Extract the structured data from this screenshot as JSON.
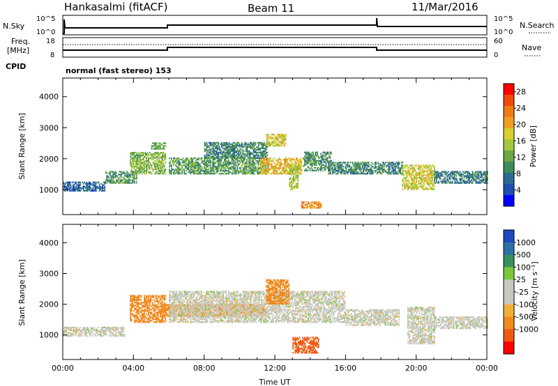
{
  "header": {
    "station": "Hankasalmi (fitACF)",
    "beam": "Beam 11",
    "date": "11/Mar/2016"
  },
  "top_panels": {
    "nsky_label": "N.Sky",
    "nsky_ticks": [
      "10^5",
      "10^0"
    ],
    "nsearch_label": "N.Search",
    "nsearch_ticks": [
      "10^5",
      "10^0"
    ],
    "freq_label": [
      "Freq.",
      "[MHz]"
    ],
    "freq_ticks": [
      "18",
      "8"
    ],
    "nave_label": "Nave",
    "nave_ticks": [
      "60",
      "0"
    ],
    "cpid_label": "CPID",
    "cpid_text": "normal (fast stereo) 153"
  },
  "colors": {
    "power": [
      "#0000ff",
      "#1f4fb0",
      "#2e6a96",
      "#3e8c5a",
      "#6ca848",
      "#a3c83c",
      "#d8d030",
      "#f0a020",
      "#f07c14",
      "#f04a0a",
      "#ff0000"
    ],
    "velocity": [
      "#1c48c0",
      "#2e70a8",
      "#3a9060",
      "#7ac83c",
      "#c8c8c0",
      "#c8c8c0",
      "#f0b038",
      "#f08a1e",
      "#f05a10",
      "#ff0000"
    ]
  },
  "chart_data": [
    {
      "type": "heatmap",
      "name": "power-panel",
      "ylabel": "Slant Range [km]",
      "xlabel": "",
      "xlim": [
        0,
        24
      ],
      "ylim": [
        200,
        4600
      ],
      "yticks": [
        "1000",
        "2000",
        "3000",
        "4000"
      ],
      "colorbar_label": "Power [dB]",
      "colorbar_ticks": [
        "4",
        "8",
        "12",
        "16",
        "20",
        "24",
        "28"
      ],
      "colorbar_range": [
        0,
        30
      ],
      "features": [
        {
          "time": [
            0.0,
            2.4
          ],
          "range": [
            950,
            1250
          ],
          "value": 6
        },
        {
          "time": [
            2.4,
            4.2
          ],
          "range": [
            1200,
            1600
          ],
          "value": 10
        },
        {
          "time": [
            3.8,
            5.8
          ],
          "range": [
            1500,
            2200
          ],
          "value": 13
        },
        {
          "time": [
            5.0,
            5.8
          ],
          "range": [
            2300,
            2500
          ],
          "value": 11
        },
        {
          "time": [
            6.0,
            11.6
          ],
          "range": [
            1500,
            2000
          ],
          "value": 11
        },
        {
          "time": [
            8.0,
            11.6
          ],
          "range": [
            2000,
            2500
          ],
          "value": 9
        },
        {
          "time": [
            11.5,
            12.6
          ],
          "range": [
            2400,
            2800
          ],
          "value": 17
        },
        {
          "time": [
            11.2,
            13.5
          ],
          "range": [
            1500,
            2000
          ],
          "value": 19
        },
        {
          "time": [
            12.8,
            13.3
          ],
          "range": [
            1000,
            1800
          ],
          "value": 15
        },
        {
          "time": [
            13.6,
            15.2
          ],
          "range": [
            1600,
            2200
          ],
          "value": 10
        },
        {
          "time": [
            13.5,
            14.6
          ],
          "range": [
            400,
            600
          ],
          "value": 22
        },
        {
          "time": [
            15.0,
            19.2
          ],
          "range": [
            1500,
            1900
          ],
          "value": 9
        },
        {
          "time": [
            19.2,
            21.0
          ],
          "range": [
            1000,
            1800
          ],
          "value": 17
        },
        {
          "time": [
            21.0,
            24.0
          ],
          "range": [
            1200,
            1600
          ],
          "value": 8
        }
      ]
    },
    {
      "type": "heatmap",
      "name": "velocity-panel",
      "ylabel": "Slant Range [km]",
      "xlabel": "Time UT",
      "xlim": [
        0,
        24
      ],
      "ylim": [
        200,
        4600
      ],
      "xticks": [
        "00:00",
        "04:00",
        "08:00",
        "12:00",
        "16:00",
        "20:00",
        "00:00"
      ],
      "yticks": [
        "1000",
        "2000",
        "3000",
        "4000"
      ],
      "colorbar_label": "Velocity [m s⁻¹]",
      "colorbar_ticks": [
        "1000",
        "500",
        "100",
        "25",
        "-25",
        "-100",
        "-500",
        "-1000"
      ],
      "features": [
        {
          "time": [
            0.0,
            3.5
          ],
          "range": [
            950,
            1250
          ],
          "value": 0
        },
        {
          "time": [
            3.8,
            5.8
          ],
          "range": [
            1400,
            2300
          ],
          "value": -300
        },
        {
          "time": [
            5.5,
            11.5
          ],
          "range": [
            1600,
            2000
          ],
          "value": -150
        },
        {
          "time": [
            6.0,
            16.0
          ],
          "range": [
            1400,
            2400
          ],
          "value": 0
        },
        {
          "time": [
            11.5,
            12.8
          ],
          "range": [
            2000,
            2800
          ],
          "value": -400
        },
        {
          "time": [
            13.0,
            14.5
          ],
          "range": [
            400,
            900
          ],
          "value": -600
        },
        {
          "time": [
            16.0,
            19.0
          ],
          "range": [
            1300,
            1800
          ],
          "value": 0
        },
        {
          "time": [
            19.5,
            21.0
          ],
          "range": [
            700,
            1900
          ],
          "value": 0
        },
        {
          "time": [
            21.0,
            24.0
          ],
          "range": [
            1200,
            1600
          ],
          "value": 0
        }
      ]
    }
  ]
}
